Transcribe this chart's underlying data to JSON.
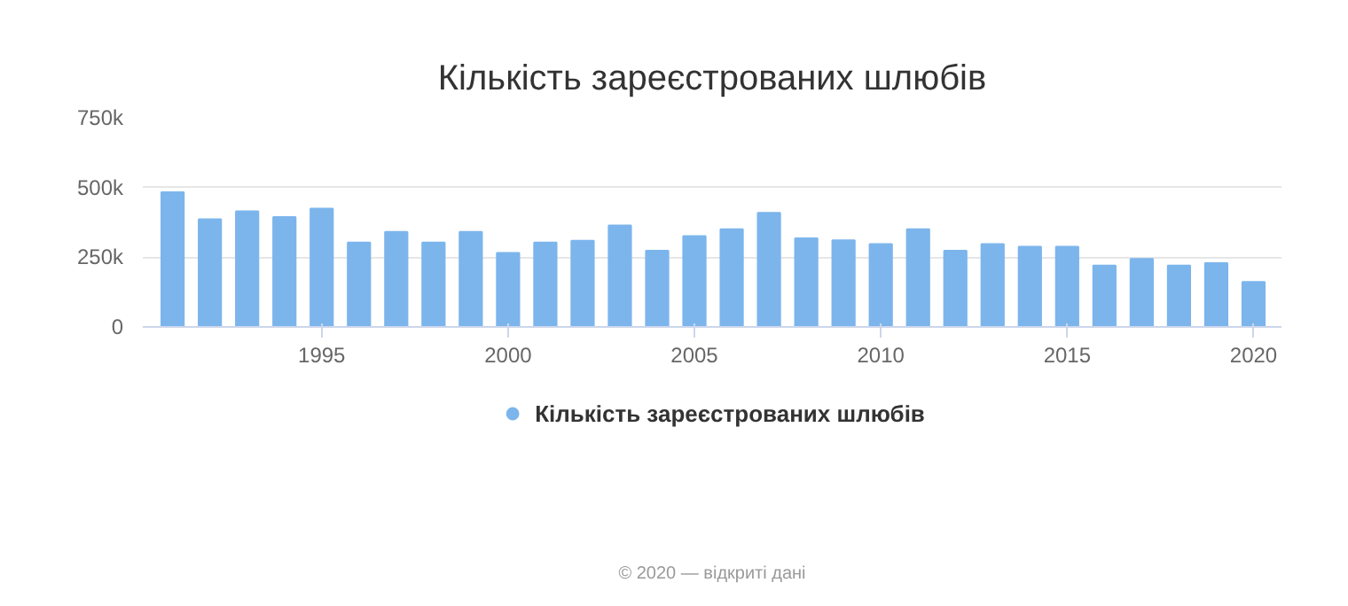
{
  "chart_data": {
    "type": "bar",
    "title": "Кількість зареєстрованих шлюбів",
    "x": [
      1991,
      1992,
      1993,
      1994,
      1995,
      1996,
      1997,
      1998,
      1999,
      2000,
      2001,
      2002,
      2003,
      2004,
      2005,
      2006,
      2007,
      2008,
      2009,
      2010,
      2011,
      2012,
      2013,
      2014,
      2015,
      2016,
      2017,
      2018,
      2019,
      2020
    ],
    "series": [
      {
        "name": "Кількість зареєстрованих шлюбів",
        "color": "#7cb5ec",
        "values": [
          483000,
          386000,
          415000,
          394000,
          424000,
          303000,
          341000,
          303000,
          341000,
          265000,
          303000,
          309000,
          364000,
          273000,
          326000,
          350000,
          409000,
          318000,
          311000,
          297000,
          350000,
          273000,
          297000,
          288000,
          288000,
          220000,
          244000,
          220000,
          229000,
          161000
        ]
      }
    ],
    "xlim": [
      1990.2,
      2020.75
    ],
    "xticks": [
      1995,
      2000,
      2005,
      2010,
      2015,
      2020
    ],
    "ylim": [
      0,
      750000
    ],
    "yticks": [
      0,
      {
        "value": 250000,
        "label": "250k"
      },
      {
        "value": 500000,
        "label": "500k"
      },
      {
        "value": 750000,
        "label": "750k"
      }
    ],
    "grid": "y",
    "legend": "bottom",
    "marker": "circle",
    "annotations": [
      "© 2020 — відкриті дані"
    ]
  }
}
